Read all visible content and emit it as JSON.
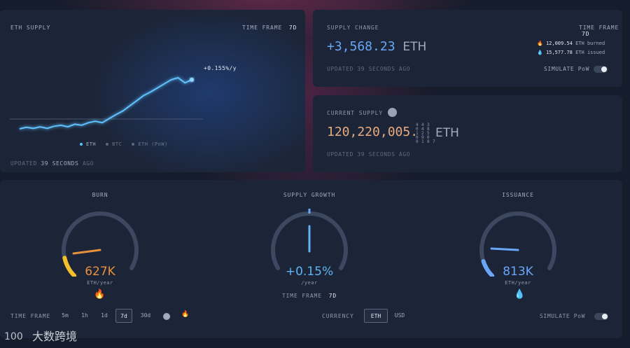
{
  "eth_supply_card": {
    "title": "ETH SUPPLY",
    "time_frame_label": "TIME FRAME",
    "time_frame_value": "7d",
    "growth_label": "+0.155%/y",
    "legend": [
      "ETH",
      "BTC",
      "ETH (PoW)"
    ],
    "updated_prefix": "UPDATED",
    "updated_value": "39 SECONDS",
    "updated_suffix": "AGO",
    "line_color": "#5fc2ff"
  },
  "supply_change_card": {
    "title": "SUPPLY CHANGE",
    "time_frame_label": "TIME FRAME",
    "time_frame_value": "7d",
    "value": "+3,568.23",
    "unit": "ETH",
    "burned_amount": "12,009.54",
    "burned_label": "ETH burned",
    "issued_amount": "15,577.78",
    "issued_label": "ETH issued",
    "updated": "UPDATED 39 SECONDS AGO",
    "simulate_label": "SIMULATE PoW"
  },
  "current_supply_card": {
    "title": "CURRENT SUPPLY",
    "value": "120,220,005.",
    "decimals": [
      "4 4 3",
      "0 4 8",
      "1 2 5",
      "0 9 0",
      "0 1 8 7"
    ],
    "unit": "ETH",
    "updated": "UPDATED 39 SECONDS AGO"
  },
  "gauges": {
    "burn": {
      "title": "BURN",
      "value": "627K",
      "unit": "ETH/year",
      "color": "#e8903a",
      "fill_color": "#f2c02d",
      "level": 0.12
    },
    "growth": {
      "title": "SUPPLY GROWTH",
      "value": "+0.15%",
      "unit": "/year",
      "color": "#5fb4f2",
      "time_frame_label": "TIME FRAME",
      "time_frame_value": "7d",
      "level": 0.5
    },
    "issuance": {
      "title": "ISSUANCE",
      "value": "813K",
      "unit": "ETH/year",
      "color": "#6aa6f7",
      "level": 0.1
    }
  },
  "controls": {
    "time_frame_label": "TIME FRAME",
    "time_frames": [
      "5m",
      "1h",
      "1d",
      "7d",
      "30d"
    ],
    "selected_time_frame": "7d",
    "currency_label": "CURRENCY",
    "currencies": [
      "ETH",
      "USD"
    ],
    "selected_currency": "ETH",
    "simulate_label": "SIMULATE PoW"
  },
  "watermark": {
    "text": "大数跨境"
  },
  "chart_data": {
    "type": "line",
    "title": "",
    "xlabel": "",
    "ylabel": "",
    "series": [
      {
        "name": "ETH",
        "values": [
          0,
          3,
          1,
          4,
          1,
          5,
          7,
          4,
          9,
          7,
          12,
          15,
          12,
          20,
          28,
          35,
          45,
          55,
          65,
          72,
          80,
          88,
          96,
          100,
          90,
          96
        ]
      }
    ],
    "annotation": "+0.155%/y",
    "grid": false,
    "legend_position": "bottom"
  }
}
